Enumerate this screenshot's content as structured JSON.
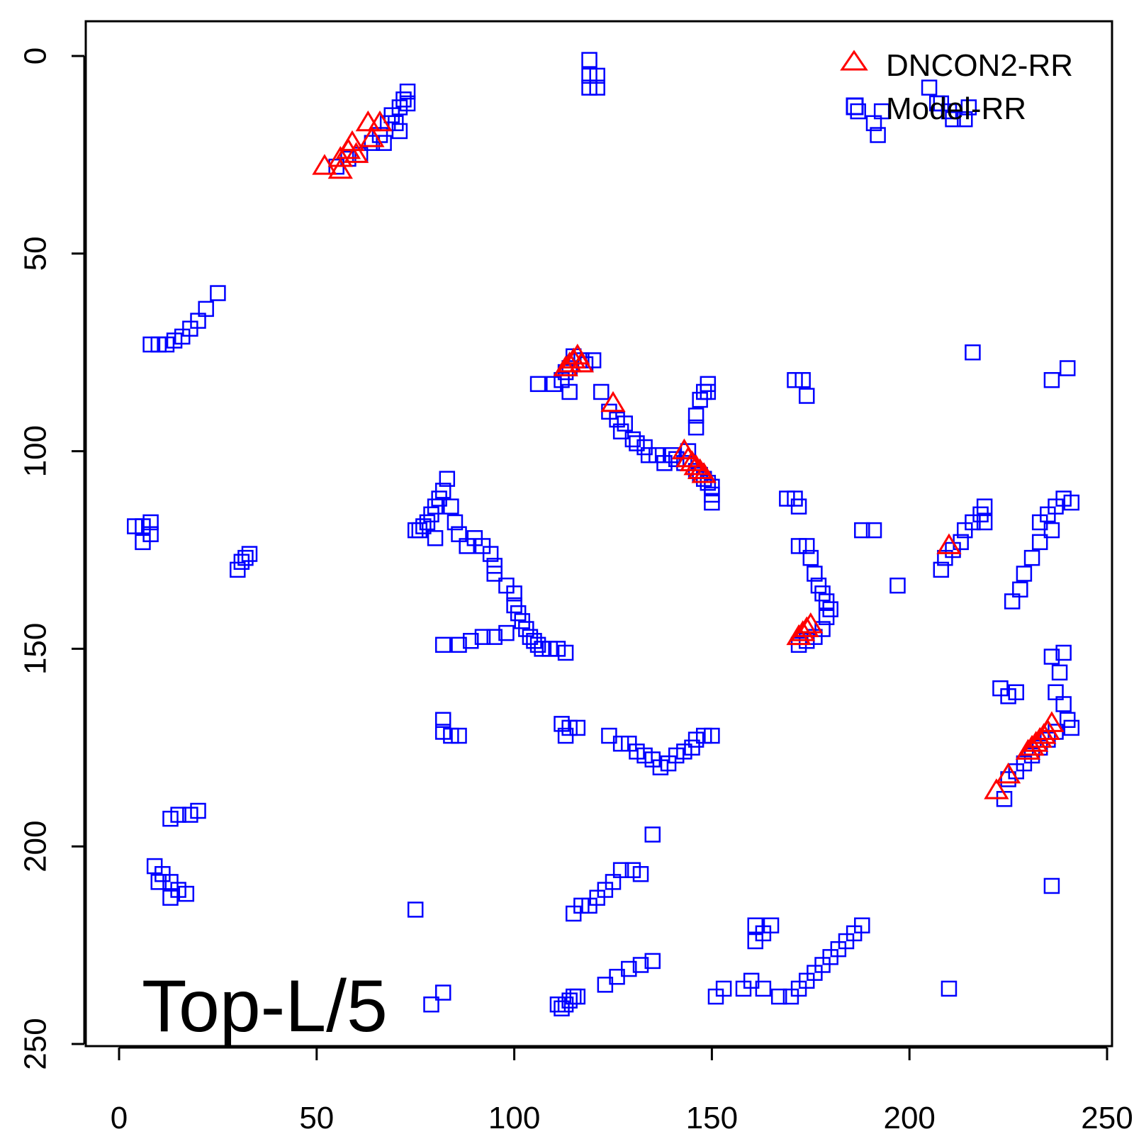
{
  "chart_data": {
    "type": "scatter",
    "title": "",
    "xlabel": "",
    "ylabel": "",
    "xlim": [
      0,
      250
    ],
    "ylim": [
      0,
      250
    ],
    "y_reversed": true,
    "x_ticks": [
      0,
      50,
      100,
      150,
      200,
      250
    ],
    "y_ticks": [
      0,
      50,
      100,
      150,
      200,
      250
    ],
    "annotation": "Top-L/5",
    "legend": {
      "position": "top-right"
    },
    "series": [
      {
        "name": "Model-RR",
        "marker": "square",
        "color": "#0000ff",
        "points": [
          [
            119,
            1
          ],
          [
            119,
            5
          ],
          [
            119,
            8
          ],
          [
            121,
            8
          ],
          [
            121,
            5
          ],
          [
            66,
            20
          ],
          [
            68,
            17
          ],
          [
            69,
            15
          ],
          [
            70,
            17
          ],
          [
            71,
            13
          ],
          [
            71,
            19
          ],
          [
            72,
            11
          ],
          [
            73,
            9
          ],
          [
            73,
            12
          ],
          [
            67,
            22
          ],
          [
            64,
            22
          ],
          [
            61,
            25
          ],
          [
            58,
            26
          ],
          [
            55,
            28
          ],
          [
            25,
            60
          ],
          [
            22,
            64
          ],
          [
            20,
            67
          ],
          [
            18,
            69
          ],
          [
            16,
            71
          ],
          [
            14,
            72
          ],
          [
            12,
            73
          ],
          [
            10,
            73
          ],
          [
            8,
            73
          ],
          [
            30,
            130
          ],
          [
            31,
            128
          ],
          [
            32,
            127
          ],
          [
            33,
            126
          ],
          [
            4,
            119
          ],
          [
            6,
            123
          ],
          [
            8,
            121
          ],
          [
            8,
            118
          ],
          [
            6,
            119
          ],
          [
            106,
            83
          ],
          [
            110,
            83
          ],
          [
            112,
            82
          ],
          [
            113,
            80
          ],
          [
            114,
            79
          ],
          [
            114,
            85
          ],
          [
            115,
            76
          ],
          [
            117,
            77
          ],
          [
            118,
            78
          ],
          [
            120,
            77
          ],
          [
            122,
            85
          ],
          [
            124,
            90
          ],
          [
            126,
            92
          ],
          [
            127,
            95
          ],
          [
            128,
            93
          ],
          [
            130,
            97
          ],
          [
            131,
            98
          ],
          [
            133,
            99
          ],
          [
            134,
            101
          ],
          [
            136,
            101
          ],
          [
            138,
            103
          ],
          [
            140,
            101
          ],
          [
            141,
            102
          ],
          [
            143,
            103
          ],
          [
            144,
            100
          ],
          [
            146,
            91
          ],
          [
            146,
            94
          ],
          [
            147,
            87
          ],
          [
            148,
            85
          ],
          [
            149,
            83
          ],
          [
            149,
            85
          ],
          [
            146,
            105
          ],
          [
            147,
            106
          ],
          [
            148,
            107
          ],
          [
            149,
            108
          ],
          [
            150,
            109
          ],
          [
            150,
            111
          ],
          [
            150,
            113
          ],
          [
            83,
            107
          ],
          [
            82,
            110
          ],
          [
            81,
            112
          ],
          [
            80,
            114
          ],
          [
            79,
            116
          ],
          [
            78,
            118
          ],
          [
            77,
            119
          ],
          [
            76,
            120
          ],
          [
            75,
            120
          ],
          [
            80,
            122
          ],
          [
            84,
            114
          ],
          [
            85,
            118
          ],
          [
            86,
            121
          ],
          [
            88,
            124
          ],
          [
            90,
            122
          ],
          [
            92,
            124
          ],
          [
            94,
            126
          ],
          [
            95,
            129
          ],
          [
            95,
            131
          ],
          [
            98,
            134
          ],
          [
            100,
            136
          ],
          [
            100,
            139
          ],
          [
            101,
            141
          ],
          [
            102,
            143
          ],
          [
            103,
            145
          ],
          [
            104,
            147
          ],
          [
            105,
            148
          ],
          [
            106,
            149
          ],
          [
            107,
            150
          ],
          [
            109,
            150
          ],
          [
            111,
            150
          ],
          [
            113,
            151
          ],
          [
            98,
            146
          ],
          [
            95,
            147
          ],
          [
            92,
            147
          ],
          [
            89,
            148
          ],
          [
            86,
            149
          ],
          [
            82,
            149
          ],
          [
            82,
            171
          ],
          [
            84,
            172
          ],
          [
            86,
            172
          ],
          [
            82,
            168
          ],
          [
            112,
            169
          ],
          [
            114,
            170
          ],
          [
            116,
            170
          ],
          [
            113,
            172
          ],
          [
            124,
            172
          ],
          [
            127,
            174
          ],
          [
            129,
            174
          ],
          [
            131,
            176
          ],
          [
            133,
            177
          ],
          [
            135,
            178
          ],
          [
            137,
            180
          ],
          [
            139,
            179
          ],
          [
            141,
            177
          ],
          [
            143,
            176
          ],
          [
            145,
            175
          ],
          [
            146,
            173
          ],
          [
            148,
            172
          ],
          [
            150,
            172
          ],
          [
            111,
            240
          ],
          [
            112,
            241
          ],
          [
            113,
            240
          ],
          [
            114,
            239
          ],
          [
            115,
            238
          ],
          [
            116,
            238
          ],
          [
            123,
            235
          ],
          [
            126,
            233
          ],
          [
            129,
            231
          ],
          [
            132,
            230
          ],
          [
            135,
            229
          ],
          [
            115,
            217
          ],
          [
            117,
            215
          ],
          [
            119,
            215
          ],
          [
            121,
            213
          ],
          [
            123,
            211
          ],
          [
            125,
            209
          ],
          [
            127,
            206
          ],
          [
            130,
            206
          ],
          [
            132,
            207
          ],
          [
            135,
            197
          ],
          [
            75,
            216
          ],
          [
            79,
            240
          ],
          [
            82,
            237
          ],
          [
            13,
            193
          ],
          [
            15,
            192
          ],
          [
            18,
            192
          ],
          [
            20,
            191
          ],
          [
            9,
            205
          ],
          [
            11,
            207
          ],
          [
            13,
            209
          ],
          [
            15,
            211
          ],
          [
            17,
            212
          ],
          [
            10,
            209
          ],
          [
            13,
            213
          ],
          [
            151,
            238
          ],
          [
            153,
            236
          ],
          [
            158,
            236
          ],
          [
            160,
            234
          ],
          [
            163,
            236
          ],
          [
            167,
            238
          ],
          [
            170,
            238
          ],
          [
            172,
            236
          ],
          [
            174,
            234
          ],
          [
            176,
            232
          ],
          [
            178,
            230
          ],
          [
            180,
            228
          ],
          [
            182,
            226
          ],
          [
            184,
            224
          ],
          [
            186,
            222
          ],
          [
            188,
            220
          ],
          [
            161,
            220
          ],
          [
            163,
            222
          ],
          [
            165,
            220
          ],
          [
            161,
            224
          ],
          [
            171,
            82
          ],
          [
            173,
            82
          ],
          [
            174,
            86
          ],
          [
            169,
            112
          ],
          [
            171,
            112
          ],
          [
            172,
            114
          ],
          [
            172,
            124
          ],
          [
            174,
            124
          ],
          [
            175,
            127
          ],
          [
            176,
            131
          ],
          [
            177,
            134
          ],
          [
            178,
            136
          ],
          [
            179,
            138
          ],
          [
            180,
            140
          ],
          [
            179,
            142
          ],
          [
            178,
            145
          ],
          [
            176,
            147
          ],
          [
            174,
            148
          ],
          [
            172,
            149
          ],
          [
            188,
            120
          ],
          [
            191,
            120
          ],
          [
            197,
            134
          ],
          [
            208,
            130
          ],
          [
            209,
            127
          ],
          [
            211,
            125
          ],
          [
            213,
            123
          ],
          [
            214,
            120
          ],
          [
            216,
            118
          ],
          [
            218,
            116
          ],
          [
            219,
            114
          ],
          [
            219,
            118
          ],
          [
            208,
            12
          ],
          [
            210,
            14
          ],
          [
            211,
            16
          ],
          [
            214,
            16
          ],
          [
            215,
            13
          ],
          [
            205,
            8
          ],
          [
            207,
            12
          ],
          [
            191,
            17
          ],
          [
            192,
            20
          ],
          [
            193,
            14
          ],
          [
            187,
            14
          ],
          [
            216,
            75
          ],
          [
            236,
            82
          ],
          [
            240,
            79
          ],
          [
            233,
            118
          ],
          [
            235,
            116
          ],
          [
            237,
            114
          ],
          [
            239,
            112
          ],
          [
            241,
            113
          ],
          [
            236,
            120
          ],
          [
            233,
            123
          ],
          [
            231,
            127
          ],
          [
            229,
            131
          ],
          [
            228,
            135
          ],
          [
            226,
            138
          ],
          [
            236,
            152
          ],
          [
            239,
            151
          ],
          [
            238,
            156
          ],
          [
            237,
            161
          ],
          [
            239,
            164
          ],
          [
            240,
            168
          ],
          [
            241,
            170
          ],
          [
            223,
            160
          ],
          [
            225,
            162
          ],
          [
            227,
            161
          ],
          [
            236,
            210
          ],
          [
            210,
            236
          ],
          [
            225,
            183
          ],
          [
            227,
            181
          ],
          [
            229,
            179
          ],
          [
            231,
            177
          ],
          [
            233,
            175
          ],
          [
            235,
            173
          ],
          [
            237,
            171
          ],
          [
            224,
            188
          ]
        ]
      },
      {
        "name": "DNCON2-RR",
        "marker": "triangle",
        "color": "#ff0000",
        "points": [
          [
            52,
            28
          ],
          [
            56,
            26
          ],
          [
            56,
            29
          ],
          [
            59,
            22
          ],
          [
            60,
            25
          ],
          [
            63,
            17
          ],
          [
            64,
            21
          ],
          [
            66,
            17
          ],
          [
            58,
            24
          ],
          [
            113,
            79
          ],
          [
            114,
            78
          ],
          [
            115,
            77
          ],
          [
            116,
            76
          ],
          [
            117,
            78
          ],
          [
            125,
            88
          ],
          [
            143,
            100
          ],
          [
            144,
            102
          ],
          [
            145,
            103
          ],
          [
            146,
            104
          ],
          [
            147,
            105
          ],
          [
            148,
            106
          ],
          [
            172,
            147
          ],
          [
            173,
            146
          ],
          [
            174,
            145
          ],
          [
            175,
            144
          ],
          [
            210,
            124
          ],
          [
            222,
            186
          ],
          [
            225,
            182
          ],
          [
            230,
            176
          ],
          [
            231,
            175
          ],
          [
            232,
            174
          ],
          [
            233,
            173
          ],
          [
            234,
            172
          ],
          [
            235,
            171
          ],
          [
            236,
            169
          ]
        ]
      }
    ]
  }
}
